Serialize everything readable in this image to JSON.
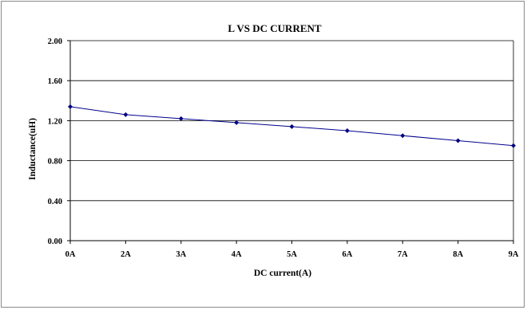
{
  "chart_data": {
    "type": "line",
    "title": "L VS DC CURRENT",
    "xlabel": "DC current(A)",
    "ylabel": "Inductance(uH)",
    "categories": [
      "0A",
      "2A",
      "3A",
      "4A",
      "5A",
      "6A",
      "7A",
      "8A",
      "9A"
    ],
    "series": [
      {
        "values": [
          1.34,
          1.26,
          1.22,
          1.18,
          1.14,
          1.1,
          1.05,
          1.0,
          0.95
        ]
      }
    ],
    "ylim": [
      0,
      2.0
    ],
    "yticks": [
      "0.00",
      "0.40",
      "0.80",
      "1.20",
      "1.60",
      "2.00"
    ],
    "ytick_values": [
      0,
      0.4,
      0.8,
      1.2,
      1.6,
      2.0
    ],
    "grid": true,
    "legend": "none",
    "colors": {
      "line": "#00008b",
      "marker": "#000080",
      "grid": "#000000"
    }
  }
}
